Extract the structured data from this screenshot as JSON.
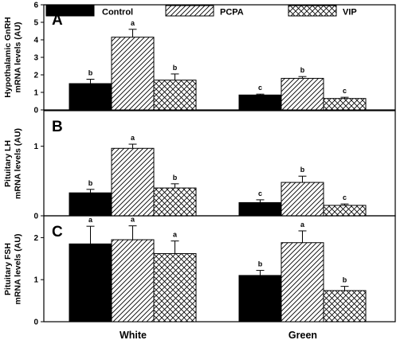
{
  "legend": [
    {
      "name": "Control",
      "pattern": "solid"
    },
    {
      "name": "PCPA",
      "pattern": "hatch"
    },
    {
      "name": "VIP",
      "pattern": "cross"
    }
  ],
  "colors": {
    "bar_fill": "#000000",
    "axis": "#000000",
    "background": "#ffffff"
  },
  "xlabels": [
    "White",
    "Green"
  ],
  "chart_data": [
    {
      "type": "bar",
      "panel_letter": "A",
      "ylabel_lines": [
        "Hypothalamic GnRH",
        "mRNA levels (AU)"
      ],
      "categories": [
        "White",
        "Green"
      ],
      "series": [
        {
          "name": "Control",
          "values": [
            1.5,
            0.85
          ],
          "errors": [
            0.25,
            0.05
          ],
          "labels": [
            "b",
            "c"
          ]
        },
        {
          "name": "PCPA",
          "values": [
            4.15,
            1.8
          ],
          "errors": [
            0.45,
            0.1
          ],
          "labels": [
            "a",
            "b"
          ]
        },
        {
          "name": "VIP",
          "values": [
            1.7,
            0.65
          ],
          "errors": [
            0.35,
            0.07
          ],
          "labels": [
            "b",
            "c"
          ]
        }
      ],
      "ylim": [
        0,
        6
      ],
      "yticks": [
        0,
        1,
        2,
        3,
        4,
        5,
        6
      ]
    },
    {
      "type": "bar",
      "panel_letter": "B",
      "ylabel_lines": [
        "Pituitary LH",
        "mRNA levels (AU)"
      ],
      "categories": [
        "White",
        "Green"
      ],
      "series": [
        {
          "name": "Control",
          "values": [
            0.33,
            0.19
          ],
          "errors": [
            0.05,
            0.04
          ],
          "labels": [
            "b",
            "c"
          ]
        },
        {
          "name": "PCPA",
          "values": [
            0.97,
            0.48
          ],
          "errors": [
            0.06,
            0.09
          ],
          "labels": [
            "a",
            "b"
          ]
        },
        {
          "name": "VIP",
          "values": [
            0.4,
            0.15
          ],
          "errors": [
            0.06,
            0.02
          ],
          "labels": [
            "b",
            "c"
          ]
        }
      ],
      "ylim": [
        0,
        1.5
      ],
      "yticks": [
        0,
        1
      ]
    },
    {
      "type": "bar",
      "panel_letter": "C",
      "ylabel_lines": [
        "Pituitary FSH",
        "mRNA levels (AU)"
      ],
      "categories": [
        "White",
        "Green"
      ],
      "series": [
        {
          "name": "Control",
          "values": [
            1.85,
            1.1
          ],
          "errors": [
            0.42,
            0.12
          ],
          "labels": [
            "a",
            "b"
          ]
        },
        {
          "name": "PCPA",
          "values": [
            1.95,
            1.88
          ],
          "errors": [
            0.33,
            0.28
          ],
          "labels": [
            "a",
            "a"
          ]
        },
        {
          "name": "VIP",
          "values": [
            1.62,
            0.74
          ],
          "errors": [
            0.3,
            0.1
          ],
          "labels": [
            "a",
            "b"
          ]
        }
      ],
      "ylim": [
        0,
        2.5
      ],
      "yticks": [
        0,
        1,
        2
      ]
    }
  ]
}
